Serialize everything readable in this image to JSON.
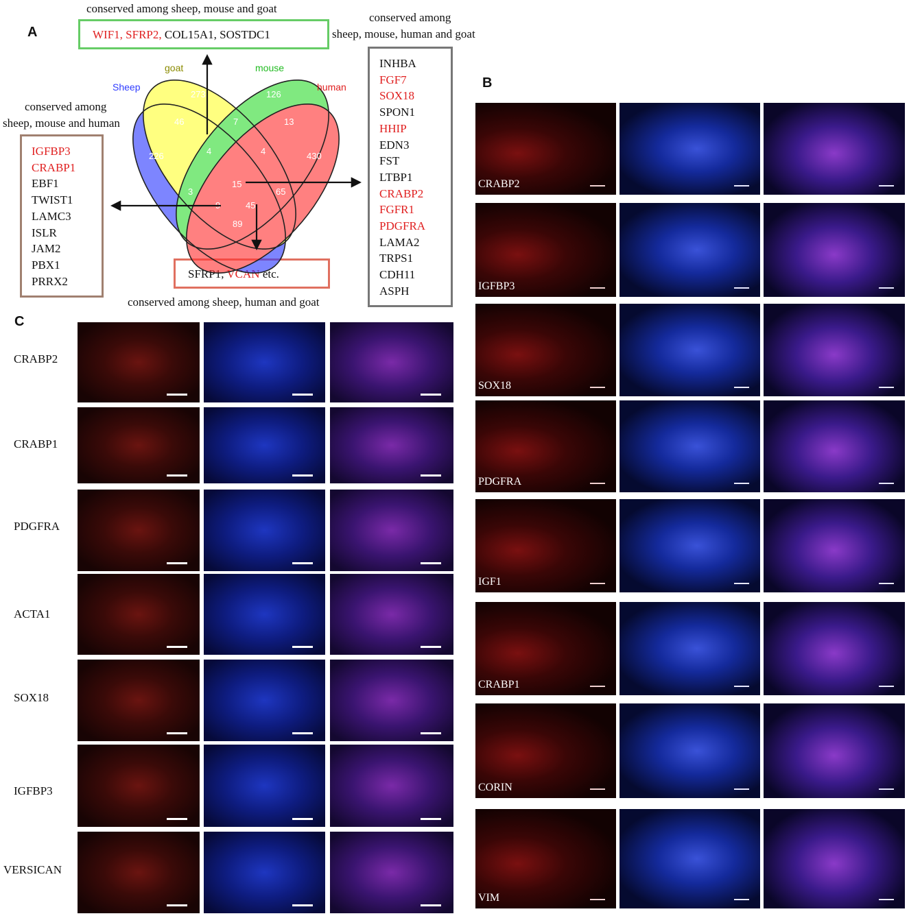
{
  "panel_letters": {
    "a": "A",
    "b": "B",
    "c": "C"
  },
  "venn": {
    "set_labels": {
      "sheep": "Sheep",
      "goat": "goat",
      "mouse": "mouse",
      "human": "human"
    },
    "colors": {
      "sheep": "#2f3cff",
      "goat": "#ffff33",
      "mouse": "#33dd33",
      "human": "#ff3333"
    },
    "counts": {
      "goat_only": "273",
      "mouse_only": "126",
      "human_only": "430",
      "sheep_only": "226",
      "sheep_goat": "46",
      "goat_mouse": "7",
      "mouse_human": "13",
      "sheep_goat_mouse": "4",
      "goat_mouse_human": "4",
      "sheep_mouse": "3",
      "goat_human": "65",
      "all_four": "15",
      "sheep_mouse_human": "9",
      "sheep_goat_human": "45",
      "sheep_human": "89"
    }
  },
  "callouts": {
    "top": {
      "caption": "conserved among sheep, mouse and goat",
      "genes_red": "WIF1, SFRP2,",
      "genes_black": " COL15A1, SOSTDC1"
    },
    "left": {
      "caption_line1": "conserved among",
      "caption_line2": "sheep, mouse and human",
      "genes": [
        {
          "name": "IGFBP3",
          "red": true
        },
        {
          "name": "CRABP1",
          "red": true
        },
        {
          "name": "EBF1",
          "red": false
        },
        {
          "name": "TWIST1",
          "red": false
        },
        {
          "name": "LAMC3",
          "red": false
        },
        {
          "name": "ISLR",
          "red": false
        },
        {
          "name": "JAM2",
          "red": false
        },
        {
          "name": "PBX1",
          "red": false
        },
        {
          "name": "PRRX2",
          "red": false
        }
      ]
    },
    "right": {
      "caption_line1": "conserved among",
      "caption_line2": "sheep, mouse, human and goat",
      "genes": [
        {
          "name": "INHBA",
          "red": false
        },
        {
          "name": "FGF7",
          "red": true
        },
        {
          "name": "SOX18",
          "red": true
        },
        {
          "name": "SPON1",
          "red": false
        },
        {
          "name": "HHIP",
          "red": true
        },
        {
          "name": "EDN3",
          "red": false
        },
        {
          "name": "FST",
          "red": false
        },
        {
          "name": "LTBP1",
          "red": false
        },
        {
          "name": "CRABP2",
          "red": true
        },
        {
          "name": "FGFR1",
          "red": true
        },
        {
          "name": "PDGFRA",
          "red": true
        },
        {
          "name": "LAMA2",
          "red": false
        },
        {
          "name": "TRPS1",
          "red": false
        },
        {
          "name": "CDH11",
          "red": false
        },
        {
          "name": "ASPH",
          "red": false
        }
      ]
    },
    "bottom": {
      "caption": "conserved among sheep, human and goat",
      "genes_black": "SFRP1, ",
      "genes_red": "VCAN",
      "genes_tail": " etc."
    }
  },
  "panel_b_rows": [
    "CRABP2",
    "IGFBP3",
    "SOX18",
    "PDGFRA",
    "IGF1",
    "CRABP1",
    "CORIN",
    "VIM"
  ],
  "panel_c_rows": [
    "CRABP2",
    "CRABP1",
    "PDGFRA",
    "ACTA1",
    "SOX18",
    "IGFBP3",
    "VERSICAN"
  ]
}
